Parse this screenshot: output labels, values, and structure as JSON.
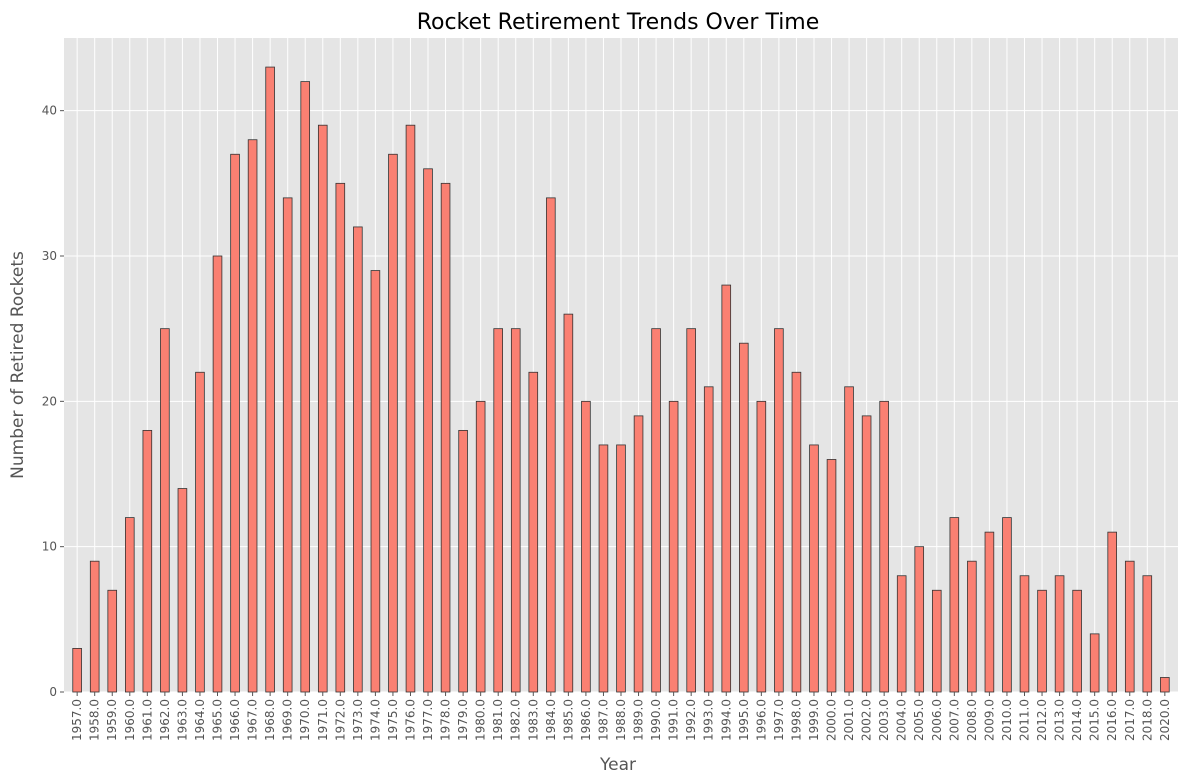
{
  "chart_data": {
    "type": "bar",
    "title": "Rocket Retirement Trends Over Time",
    "xlabel": "Year",
    "ylabel": "Number of Retired Rockets",
    "ylim": [
      0,
      45
    ],
    "yticks": [
      0,
      10,
      20,
      30,
      40
    ],
    "grid": true,
    "colors": {
      "bar_fill": "#fa8072",
      "bar_edge": "#333333",
      "plot_background": "#e5e5e5",
      "grid": "#ffffff"
    },
    "categories": [
      "1957.0",
      "1958.0",
      "1959.0",
      "1960.0",
      "1961.0",
      "1962.0",
      "1963.0",
      "1964.0",
      "1965.0",
      "1966.0",
      "1967.0",
      "1968.0",
      "1969.0",
      "1970.0",
      "1971.0",
      "1972.0",
      "1973.0",
      "1974.0",
      "1975.0",
      "1976.0",
      "1977.0",
      "1978.0",
      "1979.0",
      "1980.0",
      "1981.0",
      "1982.0",
      "1983.0",
      "1984.0",
      "1985.0",
      "1986.0",
      "1987.0",
      "1988.0",
      "1989.0",
      "1990.0",
      "1991.0",
      "1992.0",
      "1993.0",
      "1994.0",
      "1995.0",
      "1996.0",
      "1997.0",
      "1998.0",
      "1999.0",
      "2000.0",
      "2001.0",
      "2002.0",
      "2003.0",
      "2004.0",
      "2005.0",
      "2006.0",
      "2007.0",
      "2008.0",
      "2009.0",
      "2010.0",
      "2011.0",
      "2012.0",
      "2013.0",
      "2014.0",
      "2015.0",
      "2016.0",
      "2017.0",
      "2018.0",
      "2020.0"
    ],
    "values": [
      3,
      9,
      7,
      12,
      18,
      25,
      14,
      22,
      30,
      37,
      38,
      43,
      34,
      42,
      39,
      35,
      32,
      29,
      37,
      39,
      36,
      35,
      18,
      20,
      25,
      25,
      22,
      34,
      26,
      20,
      17,
      17,
      19,
      25,
      20,
      25,
      21,
      28,
      24,
      20,
      25,
      22,
      17,
      16,
      21,
      19,
      20,
      8,
      10,
      7,
      12,
      9,
      11,
      12,
      8,
      7,
      8,
      7,
      4,
      11,
      9,
      8,
      1
    ]
  }
}
